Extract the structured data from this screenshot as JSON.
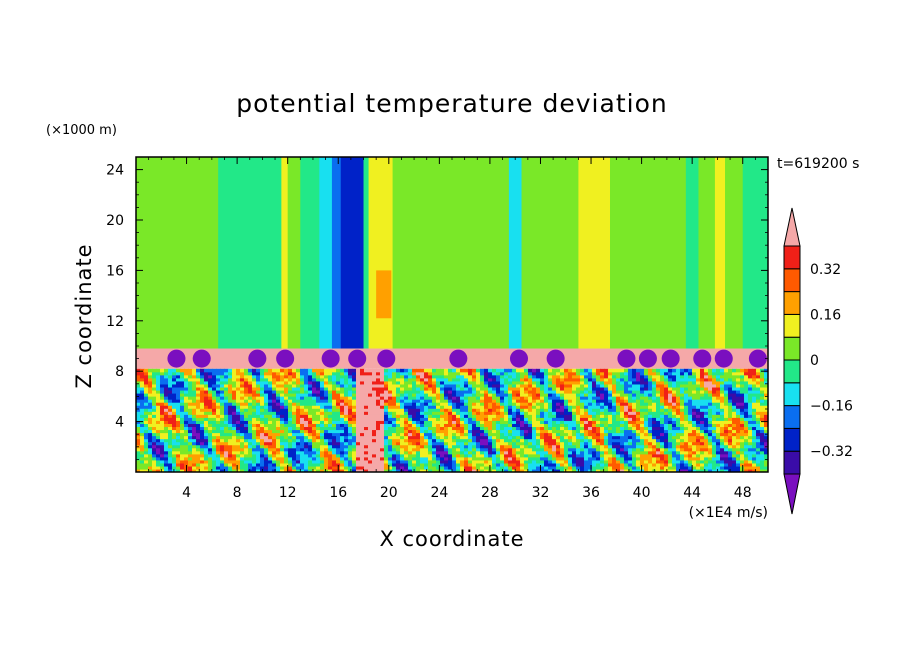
{
  "chart_data": {
    "type": "heatmap",
    "title": "potential temperature deviation",
    "time_label": "t=619200 s",
    "xlabel": "X coordinate",
    "ylabel": "Z coordinate",
    "x_unit": "(×1E4 m/s)",
    "y_unit": "(×1000 m)",
    "xlim": [
      0,
      50
    ],
    "ylim": [
      0,
      25
    ],
    "x_ticks": [
      4,
      8,
      12,
      16,
      20,
      24,
      28,
      32,
      36,
      40,
      44,
      48
    ],
    "y_ticks": [
      4,
      8,
      12,
      16,
      20,
      24
    ],
    "colorbar": {
      "levels": [
        -0.4,
        -0.32,
        -0.24,
        -0.16,
        -0.08,
        0,
        0.08,
        0.16,
        0.24,
        0.32,
        0.4
      ],
      "tick_labels": [
        "0.32",
        "0.16",
        "0",
        "−0.16",
        "−0.32"
      ],
      "tick_values": [
        0.32,
        0.16,
        0,
        -0.16,
        -0.32
      ],
      "colors": [
        "#7a0fbf",
        "#3a0ca8",
        "#0022c8",
        "#0a6ef0",
        "#18e0f0",
        "#22e888",
        "#7ae828",
        "#f0f020",
        "#ffa000",
        "#ff5a00",
        "#f02018",
        "#f5a8a8"
      ]
    },
    "upper_layer_stripes": [
      {
        "x": [
          0,
          2.5
        ],
        "value": 0.04
      },
      {
        "x": [
          2.5,
          3.2
        ],
        "value": 0.0
      },
      {
        "x": [
          3.2,
          6.5
        ],
        "value": 0.05
      },
      {
        "x": [
          6.5,
          11.5
        ],
        "value": -0.02
      },
      {
        "x": [
          11.5,
          12.0
        ],
        "value": 0.12
      },
      {
        "x": [
          12.0,
          13.0
        ],
        "value": 0.04
      },
      {
        "x": [
          13.0,
          14.5
        ],
        "value": -0.05
      },
      {
        "x": [
          14.5,
          15.5
        ],
        "value": -0.12
      },
      {
        "x": [
          15.5,
          16.2
        ],
        "value": -0.2
      },
      {
        "x": [
          16.2,
          18.0
        ],
        "value": -0.28
      },
      {
        "x": [
          18.0,
          18.4
        ],
        "value": -0.02
      },
      {
        "x": [
          18.4,
          20.3
        ],
        "value": 0.12
      },
      {
        "x": [
          20.3,
          21.0
        ],
        "value": 0.05
      },
      {
        "x": [
          21.0,
          25.5
        ],
        "value": 0.03
      },
      {
        "x": [
          25.5,
          29.5
        ],
        "value": 0.02
      },
      {
        "x": [
          29.5,
          30.5
        ],
        "value": -0.12
      },
      {
        "x": [
          30.5,
          31.5
        ],
        "value": 0.0
      },
      {
        "x": [
          31.5,
          35.0
        ],
        "value": 0.04
      },
      {
        "x": [
          35.0,
          37.5
        ],
        "value": 0.12
      },
      {
        "x": [
          37.5,
          39.0
        ],
        "value": 0.05
      },
      {
        "x": [
          39.0,
          43.5
        ],
        "value": 0.04
      },
      {
        "x": [
          43.5,
          44.5
        ],
        "value": -0.02
      },
      {
        "x": [
          44.5,
          45.8
        ],
        "value": 0.04
      },
      {
        "x": [
          45.8,
          46.6
        ],
        "value": 0.12
      },
      {
        "x": [
          46.6,
          48.0
        ],
        "value": 0.03
      },
      {
        "x": [
          48.0,
          50.0
        ],
        "value": -0.02
      }
    ],
    "upper_layer_z": [
      9.8,
      25
    ],
    "inversion_band": {
      "z": [
        8.2,
        9.8
      ],
      "value": 0.45
    },
    "orange_patch": {
      "x": [
        19.0,
        20.2
      ],
      "z": [
        12.2,
        16.0
      ],
      "value": 0.2
    },
    "purple_bumps_x": [
      3.2,
      5.2,
      9.6,
      11.8,
      15.4,
      17.5,
      19.8,
      25.5,
      30.3,
      33.2,
      38.8,
      40.5,
      42.3,
      44.8,
      46.5,
      49.2
    ],
    "convective_layer_z": [
      0,
      8.2
    ]
  }
}
